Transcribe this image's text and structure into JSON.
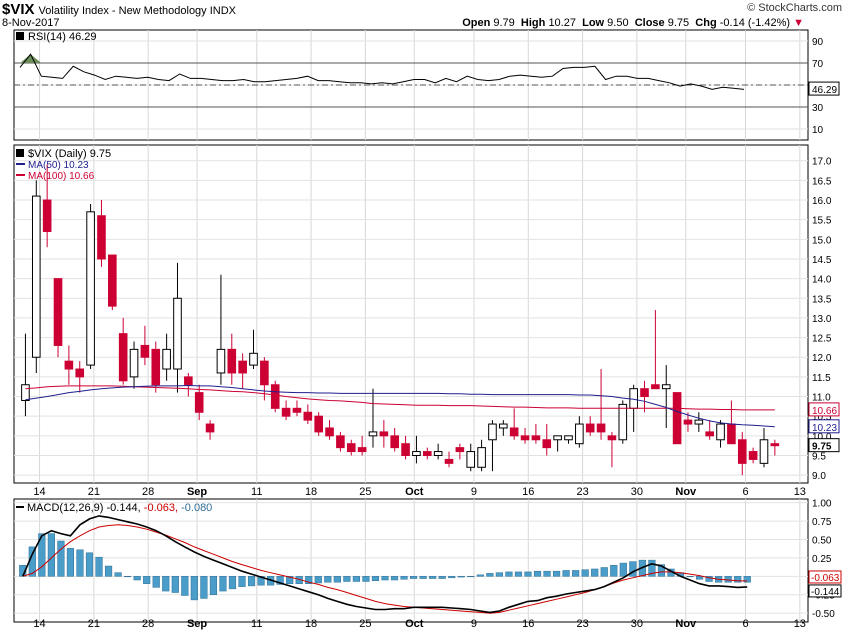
{
  "header": {
    "symbol": "$VIX",
    "name": "Volatility Index - New Methodology  INDX",
    "date": "8-Nov-2017",
    "open_label": "Open",
    "open": "9.79",
    "high_label": "High",
    "high": "10.27",
    "low_label": "Low",
    "low": "9.50",
    "close_label": "Close",
    "close": "9.75",
    "chg_label": "Chg",
    "chg": "-0.14 (-1.42%)",
    "brand": "© StockCharts.com"
  },
  "colors": {
    "up": "#000000",
    "down": "#cc0033",
    "ma50": "#1f1f8f",
    "ma100": "#cc0033",
    "macd_hist": "#4a9cc9",
    "signal": "#cc0000"
  },
  "chart_data": [
    {
      "type": "line",
      "title": "RSI(14) 46.29",
      "legend": "RSI(14) 46.29",
      "last_label": "46.29",
      "ylim": [
        0,
        100
      ],
      "y_ticks": [
        "90",
        "70",
        "50",
        "30",
        "10"
      ],
      "ref_lines": [
        70,
        50,
        30
      ],
      "values": [
        66,
        78,
        58,
        57,
        56,
        67,
        62,
        59,
        55,
        58,
        57,
        56,
        57,
        55,
        54,
        60,
        56,
        56,
        55,
        54,
        54,
        55,
        53,
        53,
        54,
        55,
        56,
        58,
        54,
        54,
        53,
        52,
        52,
        51,
        52,
        51,
        53,
        55,
        55,
        52,
        56,
        53,
        58,
        55,
        54,
        55,
        58,
        59,
        58,
        57,
        58,
        65,
        66,
        66,
        67,
        55,
        58,
        58,
        56,
        56,
        54,
        52,
        49,
        51,
        49,
        46,
        48,
        47,
        46
      ]
    },
    {
      "type": "candlestick",
      "title": "$VIX (Daily) 9.75",
      "legend": [
        "$VIX (Daily) 9.75",
        "MA(50) 10.23",
        "MA(100) 10.66"
      ],
      "ylim": [
        8.8,
        17.4
      ],
      "y_ticks": [
        "17.0",
        "16.5",
        "16.0",
        "15.5",
        "15.0",
        "14.5",
        "14.0",
        "13.5",
        "13.0",
        "12.5",
        "12.0",
        "11.5",
        "11.0",
        "10.5",
        "10.0",
        "9.5",
        "9.0"
      ],
      "price_labels": {
        "ma100": "10.66",
        "ma50": "10.23",
        "last": "9.75"
      },
      "x_ticks": [
        "14",
        "21",
        "28",
        "Sep",
        "11",
        "18",
        "25",
        "Oct",
        "9",
        "16",
        "23",
        "30",
        "Nov",
        "6",
        "13"
      ],
      "candles": [
        {
          "o": 10.9,
          "h": 12.6,
          "l": 10.5,
          "c": 11.3
        },
        {
          "o": 12.0,
          "h": 16.5,
          "l": 11.6,
          "c": 16.1
        },
        {
          "o": 16.0,
          "h": 16.9,
          "l": 14.8,
          "c": 15.2
        },
        {
          "o": 14.0,
          "h": 14.0,
          "l": 12.0,
          "c": 12.3
        },
        {
          "o": 11.9,
          "h": 12.3,
          "l": 11.3,
          "c": 11.7
        },
        {
          "o": 11.7,
          "h": 11.9,
          "l": 11.1,
          "c": 11.5
        },
        {
          "o": 11.8,
          "h": 15.9,
          "l": 11.7,
          "c": 15.7
        },
        {
          "o": 15.6,
          "h": 16.0,
          "l": 14.3,
          "c": 14.5
        },
        {
          "o": 14.6,
          "h": 14.6,
          "l": 13.2,
          "c": 13.3
        },
        {
          "o": 12.6,
          "h": 13.0,
          "l": 11.3,
          "c": 11.4
        },
        {
          "o": 11.5,
          "h": 12.4,
          "l": 11.2,
          "c": 12.2
        },
        {
          "o": 12.3,
          "h": 12.8,
          "l": 11.8,
          "c": 12.0
        },
        {
          "o": 12.2,
          "h": 12.4,
          "l": 11.1,
          "c": 11.3
        },
        {
          "o": 11.7,
          "h": 12.6,
          "l": 11.4,
          "c": 12.2
        },
        {
          "o": 11.7,
          "h": 14.4,
          "l": 11.1,
          "c": 13.5
        },
        {
          "o": 11.5,
          "h": 11.6,
          "l": 11.0,
          "c": 11.3
        },
        {
          "o": 11.1,
          "h": 11.3,
          "l": 10.4,
          "c": 10.6
        },
        {
          "o": 10.3,
          "h": 10.4,
          "l": 9.9,
          "c": 10.1
        },
        {
          "o": 11.6,
          "h": 14.1,
          "l": 11.3,
          "c": 12.2
        },
        {
          "o": 12.2,
          "h": 12.6,
          "l": 11.3,
          "c": 11.6
        },
        {
          "o": 11.9,
          "h": 12.1,
          "l": 11.2,
          "c": 11.6
        },
        {
          "o": 11.8,
          "h": 12.7,
          "l": 11.7,
          "c": 12.1
        },
        {
          "o": 11.9,
          "h": 12.0,
          "l": 10.9,
          "c": 11.3
        },
        {
          "o": 11.3,
          "h": 11.4,
          "l": 10.6,
          "c": 10.7
        },
        {
          "o": 10.7,
          "h": 10.9,
          "l": 10.4,
          "c": 10.5
        },
        {
          "o": 10.7,
          "h": 10.9,
          "l": 10.5,
          "c": 10.6
        },
        {
          "o": 10.6,
          "h": 10.8,
          "l": 10.3,
          "c": 10.4
        },
        {
          "o": 10.5,
          "h": 10.6,
          "l": 10.0,
          "c": 10.1
        },
        {
          "o": 10.2,
          "h": 10.4,
          "l": 9.9,
          "c": 10.0
        },
        {
          "o": 10.0,
          "h": 10.1,
          "l": 9.6,
          "c": 9.7
        },
        {
          "o": 9.8,
          "h": 9.9,
          "l": 9.5,
          "c": 9.6
        },
        {
          "o": 9.7,
          "h": 10.0,
          "l": 9.5,
          "c": 9.6
        },
        {
          "o": 10.0,
          "h": 11.2,
          "l": 9.7,
          "c": 10.1
        },
        {
          "o": 10.1,
          "h": 10.4,
          "l": 9.7,
          "c": 10.0
        },
        {
          "o": 10.0,
          "h": 10.2,
          "l": 9.6,
          "c": 9.7
        },
        {
          "o": 9.8,
          "h": 10.0,
          "l": 9.4,
          "c": 9.5
        },
        {
          "o": 9.5,
          "h": 10.0,
          "l": 9.3,
          "c": 9.6
        },
        {
          "o": 9.6,
          "h": 9.7,
          "l": 9.4,
          "c": 9.5
        },
        {
          "o": 9.5,
          "h": 9.8,
          "l": 9.4,
          "c": 9.6
        },
        {
          "o": 9.4,
          "h": 9.6,
          "l": 9.2,
          "c": 9.3
        },
        {
          "o": 9.7,
          "h": 9.8,
          "l": 9.4,
          "c": 9.6
        },
        {
          "o": 9.2,
          "h": 9.8,
          "l": 9.1,
          "c": 9.6
        },
        {
          "o": 9.2,
          "h": 9.9,
          "l": 9.1,
          "c": 9.7
        },
        {
          "o": 9.9,
          "h": 10.4,
          "l": 9.1,
          "c": 10.3
        },
        {
          "o": 10.2,
          "h": 10.4,
          "l": 10.0,
          "c": 10.3
        },
        {
          "o": 10.2,
          "h": 10.7,
          "l": 9.9,
          "c": 10.0
        },
        {
          "o": 10.0,
          "h": 10.2,
          "l": 9.8,
          "c": 9.9
        },
        {
          "o": 10.0,
          "h": 10.3,
          "l": 9.8,
          "c": 9.9
        },
        {
          "o": 9.9,
          "h": 10.3,
          "l": 9.5,
          "c": 9.7
        },
        {
          "o": 9.9,
          "h": 10.0,
          "l": 9.6,
          "c": 10.0
        },
        {
          "o": 9.9,
          "h": 10.0,
          "l": 9.8,
          "c": 10.0
        },
        {
          "o": 9.8,
          "h": 10.5,
          "l": 9.7,
          "c": 10.3
        },
        {
          "o": 10.3,
          "h": 10.5,
          "l": 10.0,
          "c": 10.1
        },
        {
          "o": 10.3,
          "h": 11.7,
          "l": 9.9,
          "c": 10.1
        },
        {
          "o": 10.0,
          "h": 10.1,
          "l": 9.2,
          "c": 9.9
        },
        {
          "o": 9.9,
          "h": 10.9,
          "l": 9.8,
          "c": 10.8
        },
        {
          "o": 10.7,
          "h": 11.3,
          "l": 10.1,
          "c": 11.2
        },
        {
          "o": 11.2,
          "h": 11.4,
          "l": 10.6,
          "c": 11.0
        },
        {
          "o": 11.3,
          "h": 13.2,
          "l": 11.2,
          "c": 11.2
        },
        {
          "o": 11.2,
          "h": 11.8,
          "l": 10.2,
          "c": 11.3
        },
        {
          "o": 11.1,
          "h": 11.1,
          "l": 9.8,
          "c": 9.8
        },
        {
          "o": 10.4,
          "h": 10.6,
          "l": 10.1,
          "c": 10.3
        },
        {
          "o": 10.3,
          "h": 10.6,
          "l": 10.1,
          "c": 10.4
        },
        {
          "o": 10.1,
          "h": 10.4,
          "l": 9.9,
          "c": 10.0
        },
        {
          "o": 9.9,
          "h": 10.4,
          "l": 9.7,
          "c": 10.3
        },
        {
          "o": 10.3,
          "h": 10.9,
          "l": 9.8,
          "c": 9.8
        },
        {
          "o": 9.9,
          "h": 10.1,
          "l": 9.0,
          "c": 9.3
        },
        {
          "o": 9.6,
          "h": 9.7,
          "l": 9.3,
          "c": 9.4
        },
        {
          "o": 9.3,
          "h": 10.2,
          "l": 9.2,
          "c": 9.9
        },
        {
          "o": 9.8,
          "h": 9.9,
          "l": 9.5,
          "c": 9.75
        }
      ],
      "ma50": [
        10.92,
        10.96,
        11.0,
        11.05,
        11.1,
        11.13,
        11.17,
        11.2,
        11.22,
        11.24,
        11.25,
        11.26,
        11.27,
        11.27,
        11.27,
        11.28,
        11.27,
        11.27,
        11.25,
        11.23,
        11.2,
        11.17,
        11.14,
        11.12,
        11.11,
        11.1,
        11.1,
        11.09,
        11.09,
        11.08,
        11.08,
        11.08,
        11.08,
        11.08,
        11.08,
        11.08,
        11.08,
        11.08,
        11.08,
        11.07,
        11.07,
        11.06,
        11.06,
        11.05,
        11.05,
        11.05,
        11.05,
        11.05,
        11.05,
        11.05,
        11.05,
        11.04,
        11.04,
        11.02,
        11.0,
        10.96,
        10.93,
        10.88,
        10.8,
        10.72,
        10.62,
        10.53,
        10.45,
        10.38,
        10.33,
        10.3,
        10.28,
        10.27,
        10.25,
        10.23
      ],
      "ma100": [
        11.2,
        11.22,
        11.25,
        11.26,
        11.27,
        11.27,
        11.27,
        11.27,
        11.27,
        11.26,
        11.25,
        11.24,
        11.23,
        11.22,
        11.21,
        11.2,
        11.18,
        11.17,
        11.15,
        11.13,
        11.12,
        11.1,
        11.07,
        11.04,
        11.0,
        10.97,
        10.94,
        10.92,
        10.9,
        10.89,
        10.87,
        10.85,
        10.82,
        10.81,
        10.8,
        10.79,
        10.78,
        10.78,
        10.78,
        10.77,
        10.77,
        10.77,
        10.76,
        10.75,
        10.74,
        10.73,
        10.73,
        10.72,
        10.71,
        10.71,
        10.71,
        10.7,
        10.7,
        10.7,
        10.7,
        10.7,
        10.7,
        10.7,
        10.7,
        10.7,
        10.7,
        10.69,
        10.68,
        10.68,
        10.67,
        10.67,
        10.66,
        10.66,
        10.66,
        10.66
      ]
    },
    {
      "type": "bar",
      "title": "MACD(12,26,9) -0.144, -0.063, -0.080",
      "legend": {
        "name": "MACD(12,26,9)",
        "macd": "-0.144",
        "signal": "-0.063",
        "hist": "-0.080"
      },
      "ylim": [
        -0.62,
        1.05
      ],
      "y_ticks": [
        "1.00",
        "0.75",
        "0.50",
        "0.25",
        "0.00",
        "-0.25",
        "-0.50"
      ],
      "price_labels": {
        "signal": "-0.063",
        "macd": "-0.144"
      },
      "x_ticks": [
        "14",
        "21",
        "28",
        "Sep",
        "11",
        "18",
        "25",
        "Oct",
        "9",
        "16",
        "23",
        "30",
        "Nov",
        "6",
        "13"
      ],
      "macd": [
        0.0,
        0.3,
        0.55,
        0.62,
        0.58,
        0.55,
        0.7,
        0.78,
        0.82,
        0.8,
        0.77,
        0.74,
        0.71,
        0.67,
        0.62,
        0.55,
        0.47,
        0.4,
        0.33,
        0.27,
        0.22,
        0.17,
        0.12,
        0.07,
        0.03,
        -0.01,
        -0.05,
        -0.09,
        -0.13,
        -0.17,
        -0.21,
        -0.25,
        -0.3,
        -0.34,
        -0.38,
        -0.41,
        -0.43,
        -0.45,
        -0.45,
        -0.44,
        -0.44,
        -0.42,
        -0.42,
        -0.42,
        -0.42,
        -0.43,
        -0.44,
        -0.45,
        -0.47,
        -0.49,
        -0.47,
        -0.42,
        -0.38,
        -0.34,
        -0.33,
        -0.29,
        -0.27,
        -0.24,
        -0.22,
        -0.2,
        -0.18,
        -0.14,
        -0.08,
        -0.02,
        0.06,
        0.12,
        0.17,
        0.14,
        0.07,
        0.0,
        -0.05,
        -0.1,
        -0.13,
        -0.13,
        -0.14,
        -0.15,
        -0.144
      ],
      "signal": [
        0.0,
        0.04,
        0.13,
        0.25,
        0.37,
        0.47,
        0.55,
        0.62,
        0.67,
        0.69,
        0.7,
        0.69,
        0.67,
        0.64,
        0.6,
        0.56,
        0.51,
        0.46,
        0.4,
        0.35,
        0.3,
        0.25,
        0.2,
        0.16,
        0.12,
        0.08,
        0.05,
        0.02,
        -0.01,
        -0.04,
        -0.08,
        -0.11,
        -0.15,
        -0.18,
        -0.22,
        -0.26,
        -0.3,
        -0.34,
        -0.37,
        -0.39,
        -0.41,
        -0.42,
        -0.43,
        -0.44,
        -0.45,
        -0.46,
        -0.47,
        -0.48,
        -0.49,
        -0.5,
        -0.49,
        -0.46,
        -0.43,
        -0.4,
        -0.37,
        -0.34,
        -0.31,
        -0.28,
        -0.25,
        -0.22,
        -0.18,
        -0.14,
        -0.09,
        -0.05,
        -0.02,
        0.01,
        0.04,
        0.06,
        0.06,
        0.05,
        0.03,
        0.01,
        -0.02,
        -0.04,
        -0.05,
        -0.06,
        -0.063
      ],
      "hist": [
        0.15,
        0.4,
        0.58,
        0.58,
        0.48,
        0.38,
        0.36,
        0.32,
        0.26,
        0.14,
        0.05,
        0.0,
        -0.05,
        -0.1,
        -0.15,
        -0.2,
        -0.22,
        -0.26,
        -0.32,
        -0.3,
        -0.25,
        -0.2,
        -0.17,
        -0.14,
        -0.13,
        -0.12,
        -0.12,
        -0.11,
        -0.1,
        -0.1,
        -0.1,
        -0.09,
        -0.08,
        -0.08,
        -0.07,
        -0.07,
        -0.07,
        -0.06,
        -0.05,
        -0.05,
        -0.04,
        -0.03,
        -0.03,
        -0.03,
        -0.03,
        -0.02,
        -0.01,
        0.0,
        0.02,
        0.04,
        0.05,
        0.06,
        0.06,
        0.06,
        0.07,
        0.07,
        0.07,
        0.08,
        0.08,
        0.09,
        0.1,
        0.12,
        0.15,
        0.18,
        0.2,
        0.22,
        0.22,
        0.16,
        0.1,
        0.05,
        0.0,
        -0.04,
        -0.07,
        -0.08,
        -0.08,
        -0.08,
        -0.08
      ]
    }
  ]
}
